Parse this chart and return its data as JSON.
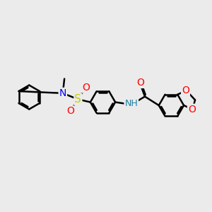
{
  "background_color": "#ebebeb",
  "bond_color": "#000000",
  "bond_width": 1.8,
  "atom_colors": {
    "N": "#0000ff",
    "O": "#ff0000",
    "S": "#cccc00",
    "C": "#000000",
    "NH": "#2080a0"
  },
  "figsize": [
    3.0,
    3.0
  ],
  "dpi": 100
}
